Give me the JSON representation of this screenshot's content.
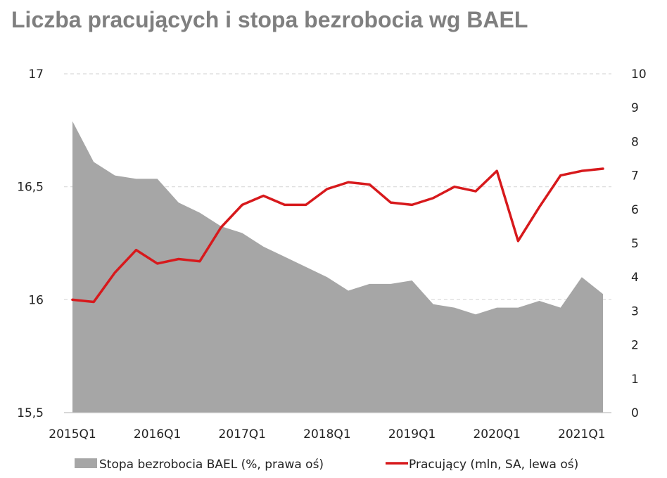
{
  "chart_data": {
    "type": "line",
    "title": "Liczba pracujących i stopa bezrobocia wg BAEL",
    "categories": [
      "2015Q1",
      "2015Q2",
      "2015Q3",
      "2015Q4",
      "2016Q1",
      "2016Q2",
      "2016Q3",
      "2016Q4",
      "2017Q1",
      "2017Q2",
      "2017Q3",
      "2017Q4",
      "2018Q1",
      "2018Q2",
      "2018Q3",
      "2018Q4",
      "2019Q1",
      "2019Q2",
      "2019Q3",
      "2019Q4",
      "2020Q1",
      "2020Q2",
      "2020Q3",
      "2020Q4",
      "2021Q1",
      "2021Q2"
    ],
    "x_tick_labels": [
      "2015Q1",
      "2016Q1",
      "2017Q1",
      "2018Q1",
      "2019Q1",
      "2020Q1",
      "2021Q1"
    ],
    "y_left": {
      "ylim": [
        15.5,
        17
      ],
      "ticks": [
        "15,5",
        "16",
        "16,5",
        "17"
      ],
      "tick_values": [
        15.5,
        16,
        16.5,
        17
      ]
    },
    "y_right": {
      "ylim": [
        0,
        10
      ],
      "ticks": [
        "0",
        "1",
        "2",
        "3",
        "4",
        "5",
        "6",
        "7",
        "8",
        "9",
        "10"
      ],
      "tick_values": [
        0,
        1,
        2,
        3,
        4,
        5,
        6,
        7,
        8,
        9,
        10
      ]
    },
    "grid": "horizontal-dashed",
    "legend_position": "bottom",
    "series": [
      {
        "name": "Stopa bezrobocia BAEL (%, prawa oś)",
        "kind": "area",
        "axis": "right",
        "color": "#a6a6a6",
        "values": [
          8.6,
          7.4,
          7.0,
          6.9,
          6.9,
          6.2,
          5.9,
          5.5,
          5.3,
          4.9,
          4.6,
          4.3,
          4.0,
          3.6,
          3.8,
          3.8,
          3.9,
          3.2,
          3.1,
          2.9,
          3.1,
          3.1,
          3.3,
          3.1,
          4.0,
          3.5
        ]
      },
      {
        "name": "Pracujący (mln, SA, lewa oś)",
        "kind": "line",
        "axis": "left",
        "color": "#d7191c",
        "values": [
          16.0,
          15.99,
          16.12,
          16.22,
          16.16,
          16.18,
          16.17,
          16.32,
          16.42,
          16.46,
          16.42,
          16.42,
          16.49,
          16.52,
          16.51,
          16.43,
          16.42,
          16.45,
          16.5,
          16.48,
          16.57,
          16.26,
          16.41,
          16.55,
          16.57,
          16.58
        ]
      }
    ]
  }
}
